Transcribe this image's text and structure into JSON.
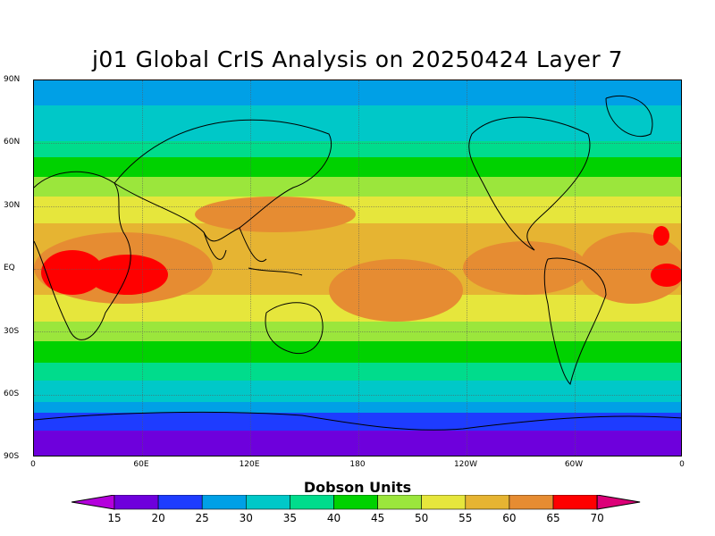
{
  "title": "j01 Global CrIS Analysis on 20250424 Layer 7",
  "map": {
    "lat_ticks": [
      "90N",
      "60N",
      "30N",
      "EQ",
      "30S",
      "60S",
      "90S"
    ],
    "lon_ticks": [
      "0",
      "60E",
      "120E",
      "180",
      "120W",
      "60W",
      "0"
    ],
    "bands": [
      {
        "level": 1,
        "color": "#1e9be8"
      },
      {
        "level": 2,
        "color": "#00c8c8"
      },
      {
        "level": 3,
        "color": "#00dc8c"
      },
      {
        "level": 4,
        "color": "#00d200"
      },
      {
        "level": 5,
        "color": "#9be63c"
      },
      {
        "level": 6,
        "color": "#e6e63c"
      },
      {
        "level": 7,
        "color": "#e6b432"
      },
      {
        "level": 8,
        "color": "#e68c32"
      },
      {
        "level": 9,
        "color": "#ff0000"
      }
    ]
  },
  "colorbar": {
    "title": "Dobson Units",
    "labels": [
      "15",
      "20",
      "25",
      "30",
      "35",
      "40",
      "45",
      "50",
      "55",
      "60",
      "65",
      "70"
    ],
    "colors": [
      "#b400dc",
      "#6e00dc",
      "#1e3cff",
      "#00a0e6",
      "#00c8c8",
      "#00dc8c",
      "#00d200",
      "#9be63c",
      "#e6e63c",
      "#e6b432",
      "#e68c32",
      "#ff0000",
      "#dc0078"
    ]
  }
}
